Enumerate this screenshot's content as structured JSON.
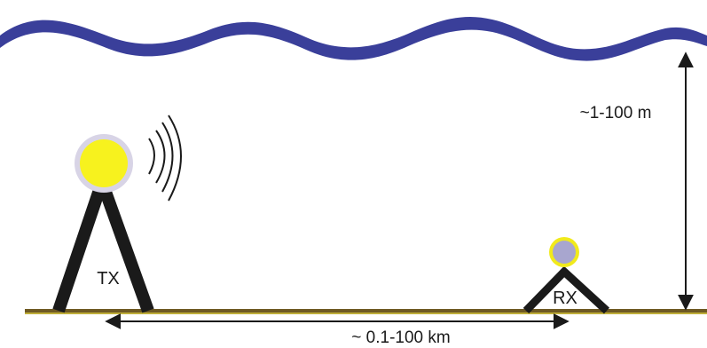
{
  "labels": {
    "transmitter": "TX",
    "receiver": "RX",
    "height_range": "~1-100 m",
    "distance_range": "~ 0.1-100 km"
  },
  "colors": {
    "surface_wave": "#3a3f9a",
    "ground": "#6f5a24",
    "ground_edge": "#bfae3a",
    "tx_emitter": "#f7f21e",
    "tx_halo": "#d8d4e6",
    "rx_emitter": "#a8a6cf",
    "rx_ring": "#f1ea1c",
    "mast": "#1a1a1a"
  },
  "icons": {
    "signal": "radio-wave-arcs"
  }
}
